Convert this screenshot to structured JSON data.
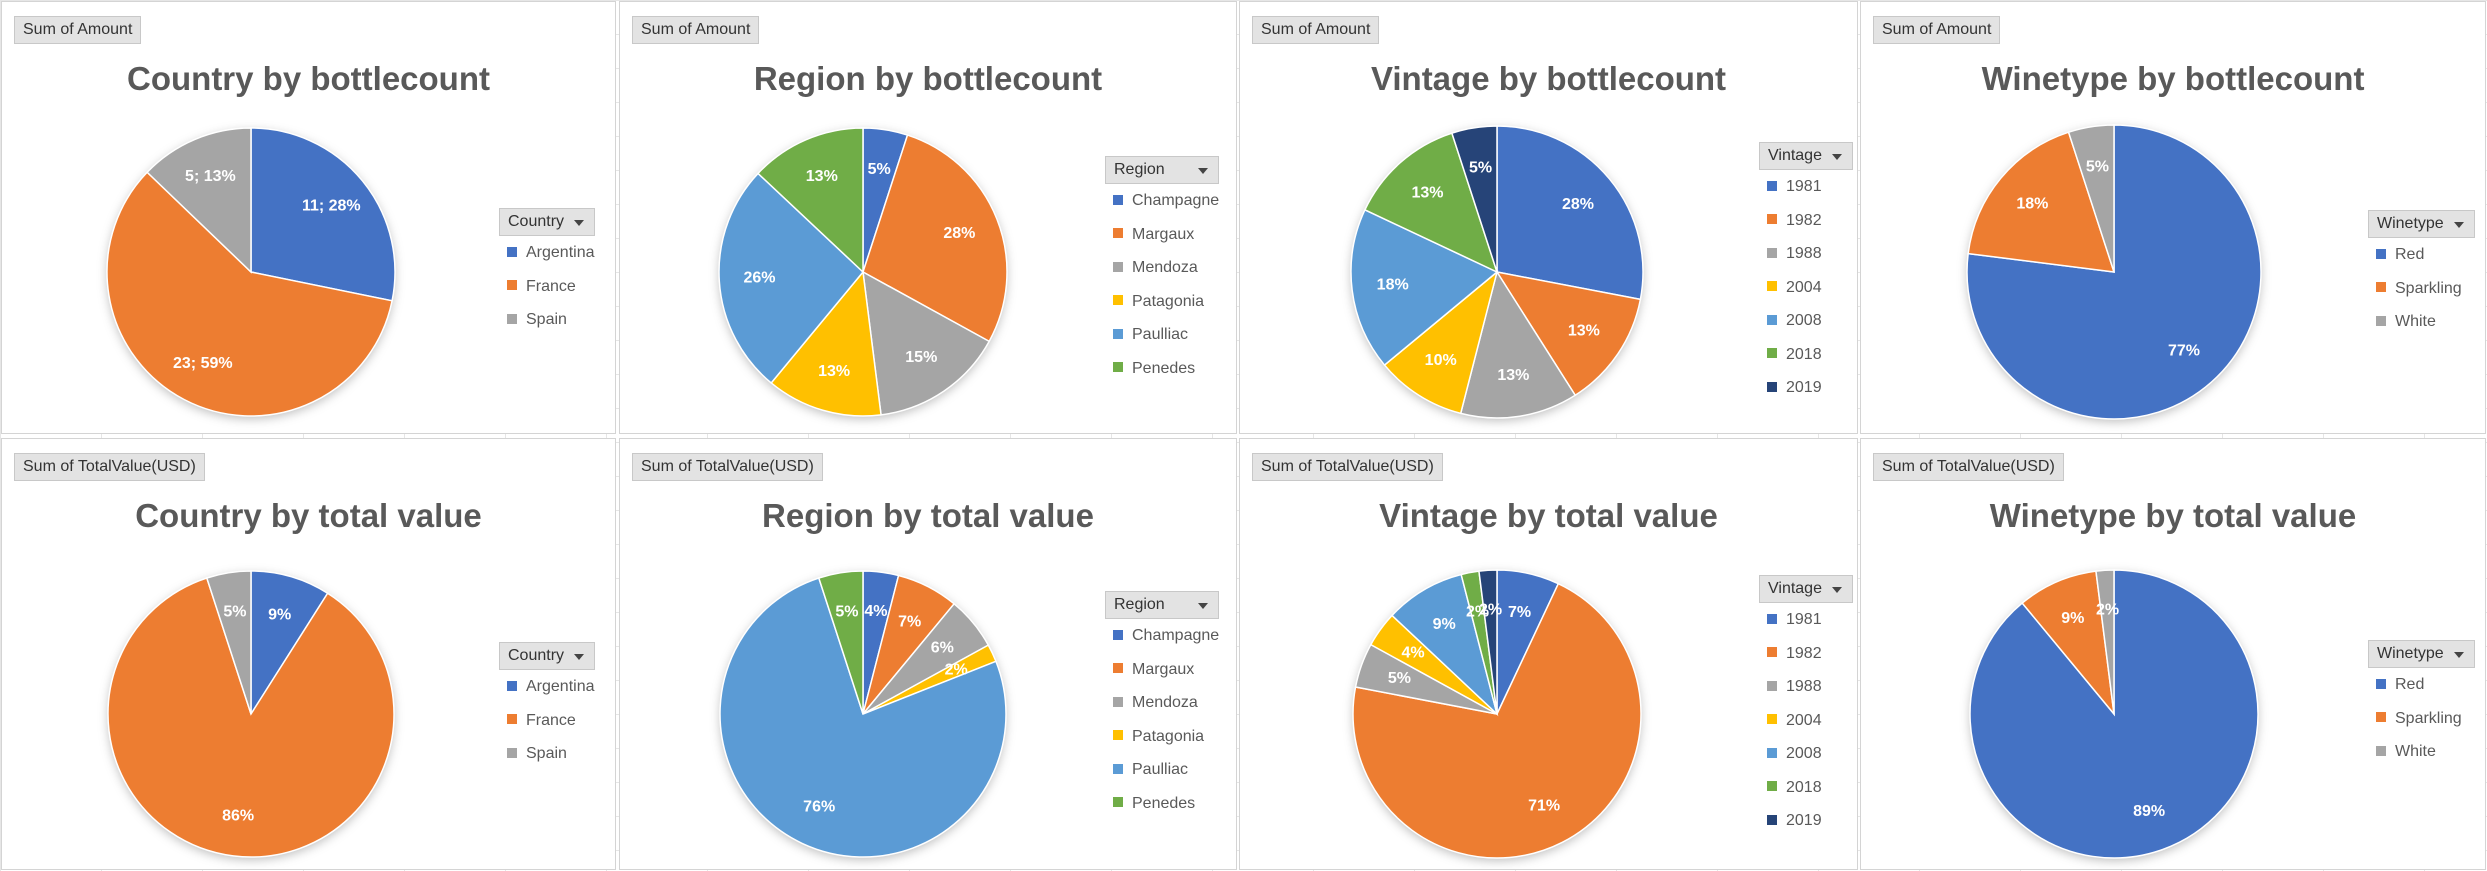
{
  "colors": {
    "blue": "#4472C4",
    "orange": "#ED7D31",
    "gray": "#A5A5A5",
    "gold": "#FFC000",
    "lightblue": "#5B9BD5",
    "green": "#70AD47",
    "navy": "#264478"
  },
  "chart_data": [
    {
      "type": "pie",
      "title": "Country by bottlecount",
      "field_button": "Sum of Amount",
      "legend_title": "Country",
      "label_mode": "value_percent",
      "categories": [
        "Argentina",
        "France",
        "Spain"
      ],
      "values": [
        11,
        23,
        5
      ],
      "percent_labels": [
        "28%",
        "59%",
        "13%"
      ],
      "colors": [
        "#4472C4",
        "#ED7D31",
        "#A5A5A5"
      ]
    },
    {
      "type": "pie",
      "title": "Region by bottlecount",
      "field_button": "Sum of Amount",
      "legend_title": "Region",
      "label_mode": "percent",
      "categories": [
        "Champagne",
        "Margaux",
        "Mendoza",
        "Patagonia",
        "Paulliac",
        "Penedes"
      ],
      "values": [
        5,
        28,
        15,
        13,
        26,
        13
      ],
      "percent_labels": [
        "5%",
        "28%",
        "15%",
        "13%",
        "26%",
        "13%"
      ],
      "colors": [
        "#4472C4",
        "#ED7D31",
        "#A5A5A5",
        "#FFC000",
        "#5B9BD5",
        "#70AD47"
      ]
    },
    {
      "type": "pie",
      "title": "Vintage by bottlecount",
      "field_button": "Sum of Amount",
      "legend_title": "Vintage",
      "label_mode": "percent",
      "categories": [
        "1981",
        "1982",
        "1988",
        "2004",
        "2008",
        "2018",
        "2019"
      ],
      "values": [
        28,
        13,
        13,
        10,
        18,
        13,
        5
      ],
      "percent_labels": [
        "28%",
        "13%",
        "13%",
        "10%",
        "18%",
        "13%",
        "5%"
      ],
      "colors": [
        "#4472C4",
        "#ED7D31",
        "#A5A5A5",
        "#FFC000",
        "#5B9BD5",
        "#70AD47",
        "#264478"
      ]
    },
    {
      "type": "pie",
      "title": "Winetype by bottlecount",
      "field_button": "Sum of Amount",
      "legend_title": "Winetype",
      "label_mode": "percent",
      "categories": [
        "Red",
        "Sparkling",
        "White"
      ],
      "values": [
        77,
        18,
        5
      ],
      "percent_labels": [
        "77%",
        "18%",
        "5%"
      ],
      "colors": [
        "#4472C4",
        "#ED7D31",
        "#A5A5A5"
      ]
    },
    {
      "type": "pie",
      "title": "Country by total value",
      "field_button": "Sum of TotalValue(USD)",
      "legend_title": "Country",
      "label_mode": "percent",
      "categories": [
        "Argentina",
        "France",
        "Spain"
      ],
      "values": [
        9,
        86,
        5
      ],
      "percent_labels": [
        "9%",
        "86%",
        "5%"
      ],
      "colors": [
        "#4472C4",
        "#ED7D31",
        "#A5A5A5"
      ]
    },
    {
      "type": "pie",
      "title": "Region by total value",
      "field_button": "Sum of TotalValue(USD)",
      "legend_title": "Region",
      "label_mode": "percent",
      "categories": [
        "Champagne",
        "Margaux",
        "Mendoza",
        "Patagonia",
        "Paulliac",
        "Penedes"
      ],
      "values": [
        4,
        7,
        6,
        2,
        76,
        5
      ],
      "percent_labels": [
        "4%",
        "7%",
        "6%",
        "2%",
        "76%",
        "5%"
      ],
      "colors": [
        "#4472C4",
        "#ED7D31",
        "#A5A5A5",
        "#FFC000",
        "#5B9BD5",
        "#70AD47"
      ]
    },
    {
      "type": "pie",
      "title": "Vintage by total value",
      "field_button": "Sum of TotalValue(USD)",
      "legend_title": "Vintage",
      "label_mode": "percent",
      "categories": [
        "1981",
        "1982",
        "1988",
        "2004",
        "2008",
        "2018",
        "2019"
      ],
      "values": [
        7,
        71,
        5,
        4,
        9,
        2,
        2
      ],
      "percent_labels": [
        "7%",
        "71%",
        "5%",
        "4%",
        "9%",
        "2%",
        "2%"
      ],
      "colors": [
        "#4472C4",
        "#ED7D31",
        "#A5A5A5",
        "#FFC000",
        "#5B9BD5",
        "#70AD47",
        "#264478"
      ]
    },
    {
      "type": "pie",
      "title": "Winetype by total value",
      "field_button": "Sum of TotalValue(USD)",
      "legend_title": "Winetype",
      "label_mode": "percent",
      "categories": [
        "Red",
        "Sparkling",
        "White"
      ],
      "values": [
        89,
        9,
        2
      ],
      "percent_labels": [
        "89%",
        "9%",
        "2%"
      ],
      "colors": [
        "#4472C4",
        "#ED7D31",
        "#A5A5A5"
      ]
    }
  ]
}
